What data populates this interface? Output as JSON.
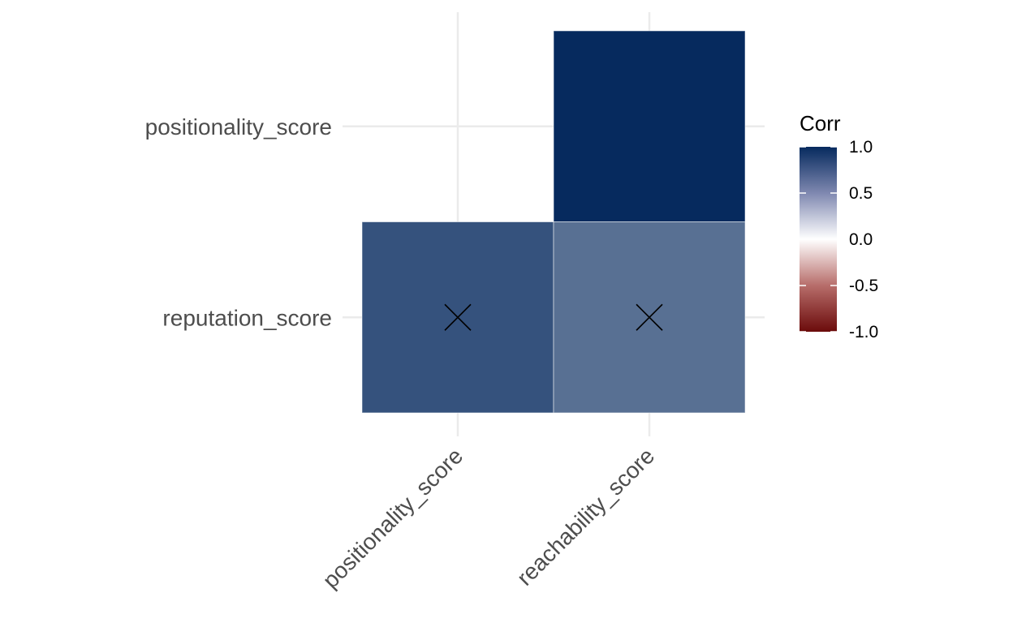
{
  "chart_data": {
    "type": "heatmap",
    "x_categories": [
      "positionality_score",
      "reachability_score"
    ],
    "y_categories": [
      "reputation_score",
      "positionality_score"
    ],
    "cells": [
      {
        "x": "reachability_score",
        "y": "positionality_score",
        "value": 1.0,
        "insignificant": false
      },
      {
        "x": "positionality_score",
        "y": "reputation_score",
        "value": 0.81,
        "insignificant": true
      },
      {
        "x": "reachability_score",
        "y": "reputation_score",
        "value": 0.67,
        "insignificant": true
      }
    ],
    "legend": {
      "title": "Corr",
      "ticks": [
        1.0,
        0.5,
        0.0,
        -0.5,
        -1.0
      ],
      "tick_labels": [
        "1.0",
        "0.5",
        "0.0",
        "-0.5",
        "-1.0"
      ],
      "range": [
        -1,
        1
      ],
      "placement": "right"
    },
    "colors": {
      "high": "#062a5e",
      "mid": "#ffffff",
      "low": "#6b0b0b"
    },
    "grid": true
  }
}
